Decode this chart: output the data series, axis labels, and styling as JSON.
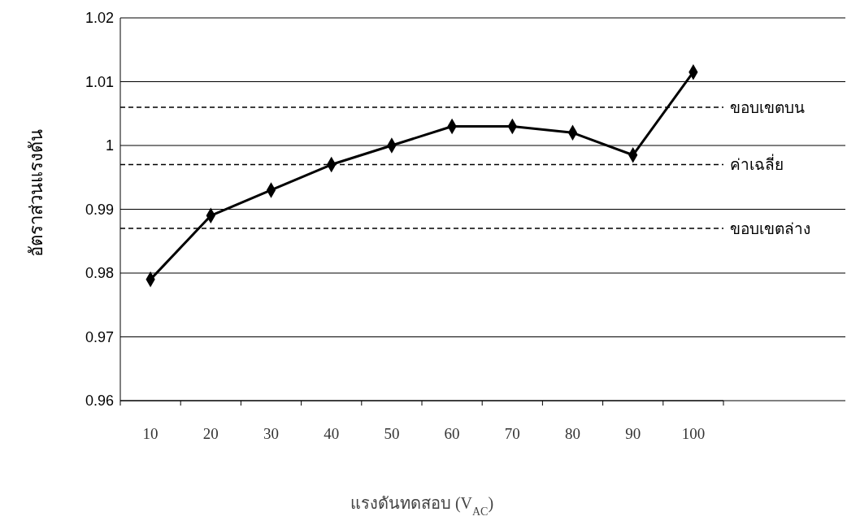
{
  "chart_data": {
    "type": "line",
    "xlabel": "แรงดันทดสอบ (V$_{AC}$)",
    "ylabel": "อัตราส่วนแรงดัน",
    "categories": [
      "10",
      "20",
      "30",
      "40",
      "50",
      "60",
      "70",
      "80",
      "90",
      "100"
    ],
    "values": [
      0.979,
      0.989,
      0.993,
      0.997,
      1.0,
      1.003,
      1.003,
      1.002,
      0.9985,
      1.0115
    ],
    "color": "#000000",
    "marker": "diamond",
    "line_style": "solid",
    "grid": "y",
    "ylim": [
      0.96,
      1.02
    ],
    "yticks": [
      0.96,
      0.97,
      0.98,
      0.99,
      1,
      1.01,
      1.02
    ],
    "ref_lines": [
      {
        "axis": "y",
        "value": 1.006,
        "label": "ขอบเขตบน",
        "line_style": "dashed",
        "color": "#000000"
      },
      {
        "axis": "y",
        "value": 0.997,
        "label": "ค่าเฉลี่ย",
        "line_style": "dashed",
        "color": "#000000"
      },
      {
        "axis": "y",
        "value": 0.987,
        "label": "ขอบเขตล่าง",
        "line_style": "dashed",
        "color": "#000000"
      }
    ]
  }
}
